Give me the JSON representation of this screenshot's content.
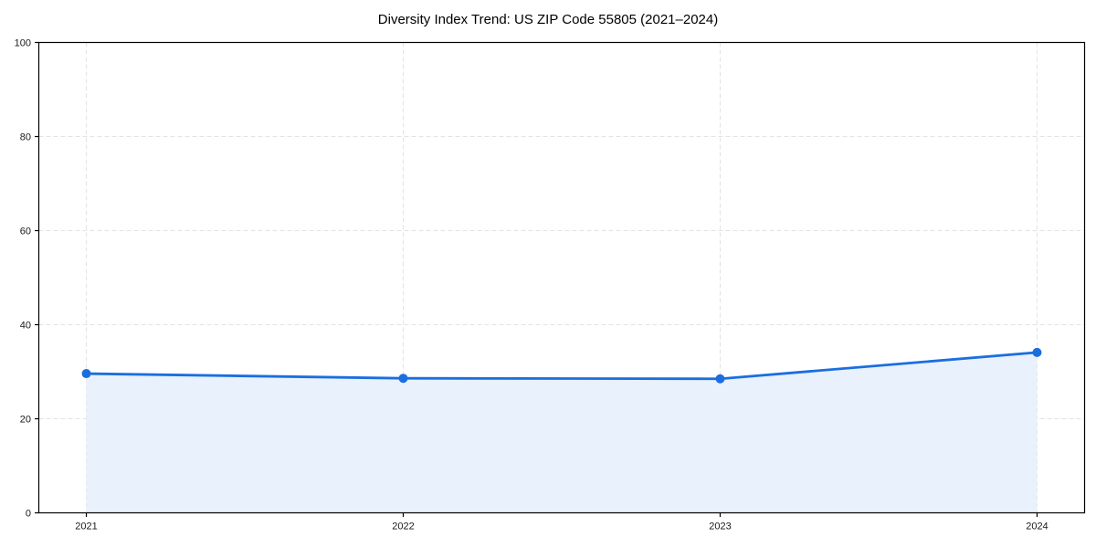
{
  "chart_data": {
    "type": "area",
    "title": "Diversity Index Trend: US ZIP Code 55805 (2021–2024)",
    "xlabel": "",
    "ylabel": "",
    "x": [
      2021,
      2022,
      2023,
      2024
    ],
    "x_tick_labels": [
      "2021",
      "2022",
      "2023",
      "2024"
    ],
    "series": [
      {
        "name": "Diversity Index",
        "values": [
          29.6,
          28.6,
          28.5,
          34.1
        ]
      }
    ],
    "ylim": [
      0,
      100
    ],
    "y_ticks": [
      0,
      20,
      40,
      60,
      80,
      100
    ],
    "y_tick_labels": [
      "0",
      "20",
      "40",
      "60",
      "80",
      "100"
    ],
    "x_margin_fraction": 0.05,
    "grid": true,
    "grid_style": "dashed",
    "legend_position": "none",
    "colors": {
      "line": "#1a6ee0",
      "marker": "#1a6ee0",
      "area_fill": "#e8f1fc",
      "grid": "#e3e3e3",
      "spine": "#000000",
      "tick_label": "#1a1a1a",
      "title": "#000000",
      "background": "#ffffff"
    }
  }
}
